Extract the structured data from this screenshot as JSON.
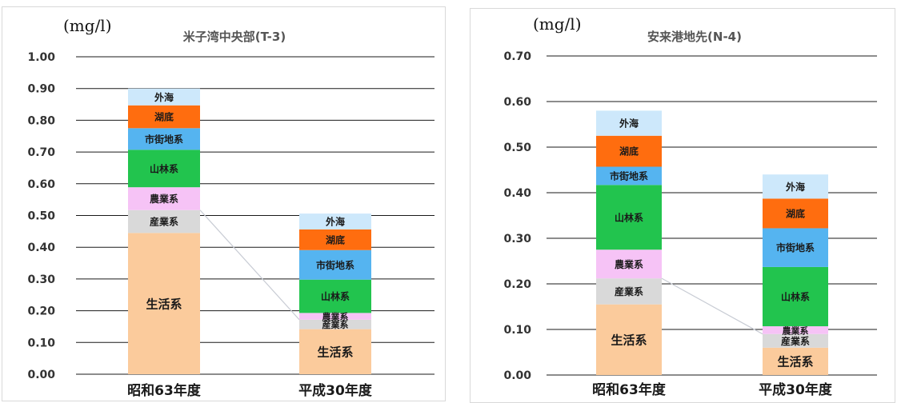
{
  "chart_data": [
    {
      "type": "bar",
      "stacked": true,
      "title": "米子湾中央部(T-3)",
      "unit": "(mg/l)",
      "categories": [
        "昭和63年度",
        "平成30年度"
      ],
      "ylim": [
        0,
        1.0
      ],
      "yticks": [
        "0.00",
        "0.10",
        "0.20",
        "0.30",
        "0.40",
        "0.50",
        "0.60",
        "0.70",
        "0.80",
        "0.90",
        "1.00"
      ],
      "grid": true,
      "series": [
        {
          "name": "生活系",
          "color": "#fbcb9c",
          "values": [
            0.445,
            0.142
          ]
        },
        {
          "name": "産業系",
          "color": "#d9d9d9",
          "values": [
            0.072,
            0.03
          ]
        },
        {
          "name": "農業系",
          "color": "#f6c3f6",
          "values": [
            0.072,
            0.021
          ]
        },
        {
          "name": "山林系",
          "color": "#22c44e",
          "values": [
            0.118,
            0.105
          ]
        },
        {
          "name": "市街地系",
          "color": "#55b4f0",
          "values": [
            0.068,
            0.093
          ]
        },
        {
          "name": "湖底",
          "color": "#ff6d0f",
          "values": [
            0.072,
            0.065
          ]
        },
        {
          "name": "外海",
          "color": "#cde8fb",
          "values": [
            0.053,
            0.05
          ]
        }
      ]
    },
    {
      "type": "bar",
      "stacked": true,
      "title": "安来港地先(N-4)",
      "unit": "(mg/l)",
      "categories": [
        "昭和63年度",
        "平成30年度"
      ],
      "ylim": [
        0,
        0.7
      ],
      "yticks": [
        "0.00",
        "0.10",
        "0.20",
        "0.30",
        "0.40",
        "0.50",
        "0.60",
        "0.70"
      ],
      "grid": true,
      "series": [
        {
          "name": "生活系",
          "color": "#fbcb9c",
          "values": [
            0.155,
            0.06
          ]
        },
        {
          "name": "産業系",
          "color": "#d9d9d9",
          "values": [
            0.057,
            0.03
          ]
        },
        {
          "name": "農業系",
          "color": "#f6c3f6",
          "values": [
            0.063,
            0.017
          ]
        },
        {
          "name": "山林系",
          "color": "#22c44e",
          "values": [
            0.142,
            0.13
          ]
        },
        {
          "name": "市街地系",
          "color": "#55b4f0",
          "values": [
            0.04,
            0.085
          ]
        },
        {
          "name": "湖底",
          "color": "#ff6d0f",
          "values": [
            0.068,
            0.065
          ]
        },
        {
          "name": "外海",
          "color": "#cde8fb",
          "values": [
            0.055,
            0.053
          ]
        }
      ]
    }
  ]
}
